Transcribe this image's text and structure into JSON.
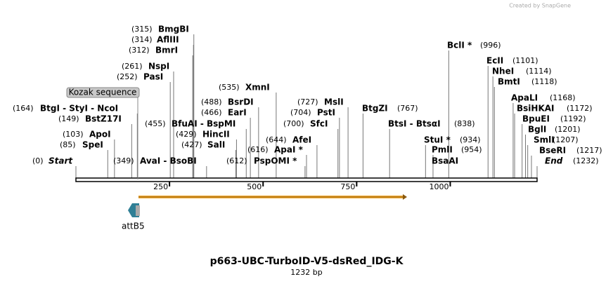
{
  "header": {
    "credit": "Created by SnapGene"
  },
  "enzymes": [
    {
      "name": "BmgBI",
      "position": "(315)"
    },
    {
      "name": "AflIII",
      "position": "(314)"
    },
    {
      "name": "BmrI",
      "position": "(312)"
    },
    {
      "name": "NspI",
      "position": "(261)"
    },
    {
      "name": "PasI",
      "position": "(252)"
    },
    {
      "name": "XmnI",
      "position": "(535)"
    },
    {
      "name": "BsrDI",
      "position": "(488)"
    },
    {
      "name": "BtgI  - StyI  - NcoI",
      "position": "(164)"
    },
    {
      "name": "MslI",
      "position": "(727)"
    },
    {
      "name": "BtgZI",
      "position": "(767)"
    },
    {
      "name": "BclI *",
      "position": "(996)"
    },
    {
      "name": "EcII",
      "position": "(1101)"
    },
    {
      "name": "NheI",
      "position": "(1114)"
    },
    {
      "name": "BmtI",
      "position": "(1118)"
    },
    {
      "name": "ApaLI",
      "position": "(1168)"
    },
    {
      "name": "BsiHKAI",
      "position": "(1172)"
    },
    {
      "name": "BpuEI",
      "position": "(1192)"
    },
    {
      "name": "BglI",
      "position": "(1201)"
    },
    {
      "name": "SmlI",
      "position": "(1207)"
    },
    {
      "name": "BseRI",
      "position": "(1217)"
    },
    {
      "name": "End",
      "position": "(1232)"
    },
    {
      "name": "EarI",
      "position": "(466)"
    },
    {
      "name": "PstI",
      "position": "(704)"
    },
    {
      "name": "BstZ17I",
      "position": "(149)"
    },
    {
      "name": "BfuAI  - BspMI",
      "position": "(455)"
    },
    {
      "name": "SfcI",
      "position": "(700)"
    },
    {
      "name": "BtsI  - BtsαI",
      "position": "(838)"
    },
    {
      "name": "HincII",
      "position": "(429)"
    },
    {
      "name": "ApoI",
      "position": "(103)"
    },
    {
      "name": "AfeI",
      "position": "(644)"
    },
    {
      "name": "StuI *",
      "position": "(934)"
    },
    {
      "name": "SpeI",
      "position": "(85)"
    },
    {
      "name": "SalI",
      "position": "(427)"
    },
    {
      "name": "ApaI *",
      "position": "(616)"
    },
    {
      "name": "PmlI",
      "position": "(954)"
    },
    {
      "name": "Start",
      "position": "(0)"
    },
    {
      "name": "AvaI  - BsoBI",
      "position": "(349)"
    },
    {
      "name": "PspOMI *",
      "position": "(612)"
    }
  ],
  "extra_label": "BsaAI",
  "feature_box": "Kozak sequence",
  "ruler": [
    "250",
    "500",
    "750",
    "1000"
  ],
  "feature": "attB5",
  "title": "p663-UBC-TurboID-V5-dsRed_IDG-K",
  "length": "1232 bp"
}
